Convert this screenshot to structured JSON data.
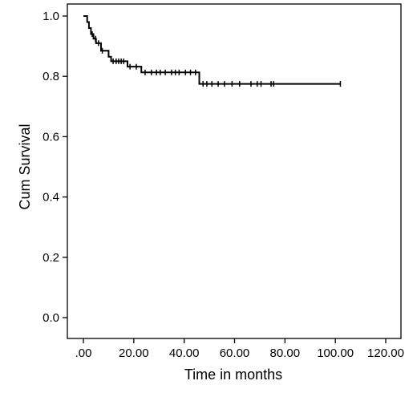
{
  "chart_data": {
    "type": "line",
    "subtype": "kaplan-meier-step",
    "title": "",
    "xlabel": "Time in months",
    "ylabel": "Cum Survival",
    "xlim": [
      0,
      120
    ],
    "ylim": [
      0,
      1
    ],
    "x_ticks": [
      0,
      20,
      40,
      60,
      80,
      100,
      120
    ],
    "x_tick_labels": [
      ".00",
      "20.00",
      "40.00",
      "60.00",
      "80.00",
      "100.00",
      "120.00"
    ],
    "y_ticks": [
      0,
      0.2,
      0.4,
      0.6,
      0.8,
      1.0
    ],
    "y_tick_labels": [
      "0.0",
      "0.2",
      "0.4",
      "0.6",
      "0.8",
      "1.0"
    ],
    "grid": false,
    "legend": "none",
    "line_color": "#000000",
    "series": [
      {
        "steps": [
          [
            0,
            1.0
          ],
          [
            1.5,
            0.98
          ],
          [
            2.2,
            0.96
          ],
          [
            3.0,
            0.94
          ],
          [
            4.0,
            0.925
          ],
          [
            5.0,
            0.91
          ],
          [
            7.0,
            0.885
          ],
          [
            10.0,
            0.865
          ],
          [
            11.0,
            0.85
          ],
          [
            17.5,
            0.832
          ],
          [
            23.0,
            0.813
          ],
          [
            46.0,
            0.775
          ]
        ],
        "end_x": 102,
        "censored": [
          [
            3.5,
            0.94
          ],
          [
            4.8,
            0.925
          ],
          [
            6.0,
            0.91
          ],
          [
            7.5,
            0.885
          ],
          [
            11.8,
            0.85
          ],
          [
            13.0,
            0.85
          ],
          [
            14.0,
            0.85
          ],
          [
            15.0,
            0.85
          ],
          [
            16.0,
            0.85
          ],
          [
            18.5,
            0.832
          ],
          [
            21.0,
            0.832
          ],
          [
            24.5,
            0.813
          ],
          [
            27.0,
            0.813
          ],
          [
            29.0,
            0.813
          ],
          [
            30.5,
            0.813
          ],
          [
            32.5,
            0.813
          ],
          [
            35.0,
            0.813
          ],
          [
            36.5,
            0.813
          ],
          [
            38.0,
            0.813
          ],
          [
            40.5,
            0.813
          ],
          [
            42.5,
            0.813
          ],
          [
            44.5,
            0.813
          ],
          [
            47.5,
            0.775
          ],
          [
            49.0,
            0.775
          ],
          [
            51.0,
            0.775
          ],
          [
            53.5,
            0.775
          ],
          [
            56.0,
            0.775
          ],
          [
            59.0,
            0.775
          ],
          [
            62.0,
            0.775
          ],
          [
            66.5,
            0.775
          ],
          [
            69.0,
            0.775
          ],
          [
            70.5,
            0.775
          ],
          [
            74.5,
            0.775
          ],
          [
            75.5,
            0.775
          ],
          [
            102,
            0.775
          ]
        ]
      }
    ]
  }
}
